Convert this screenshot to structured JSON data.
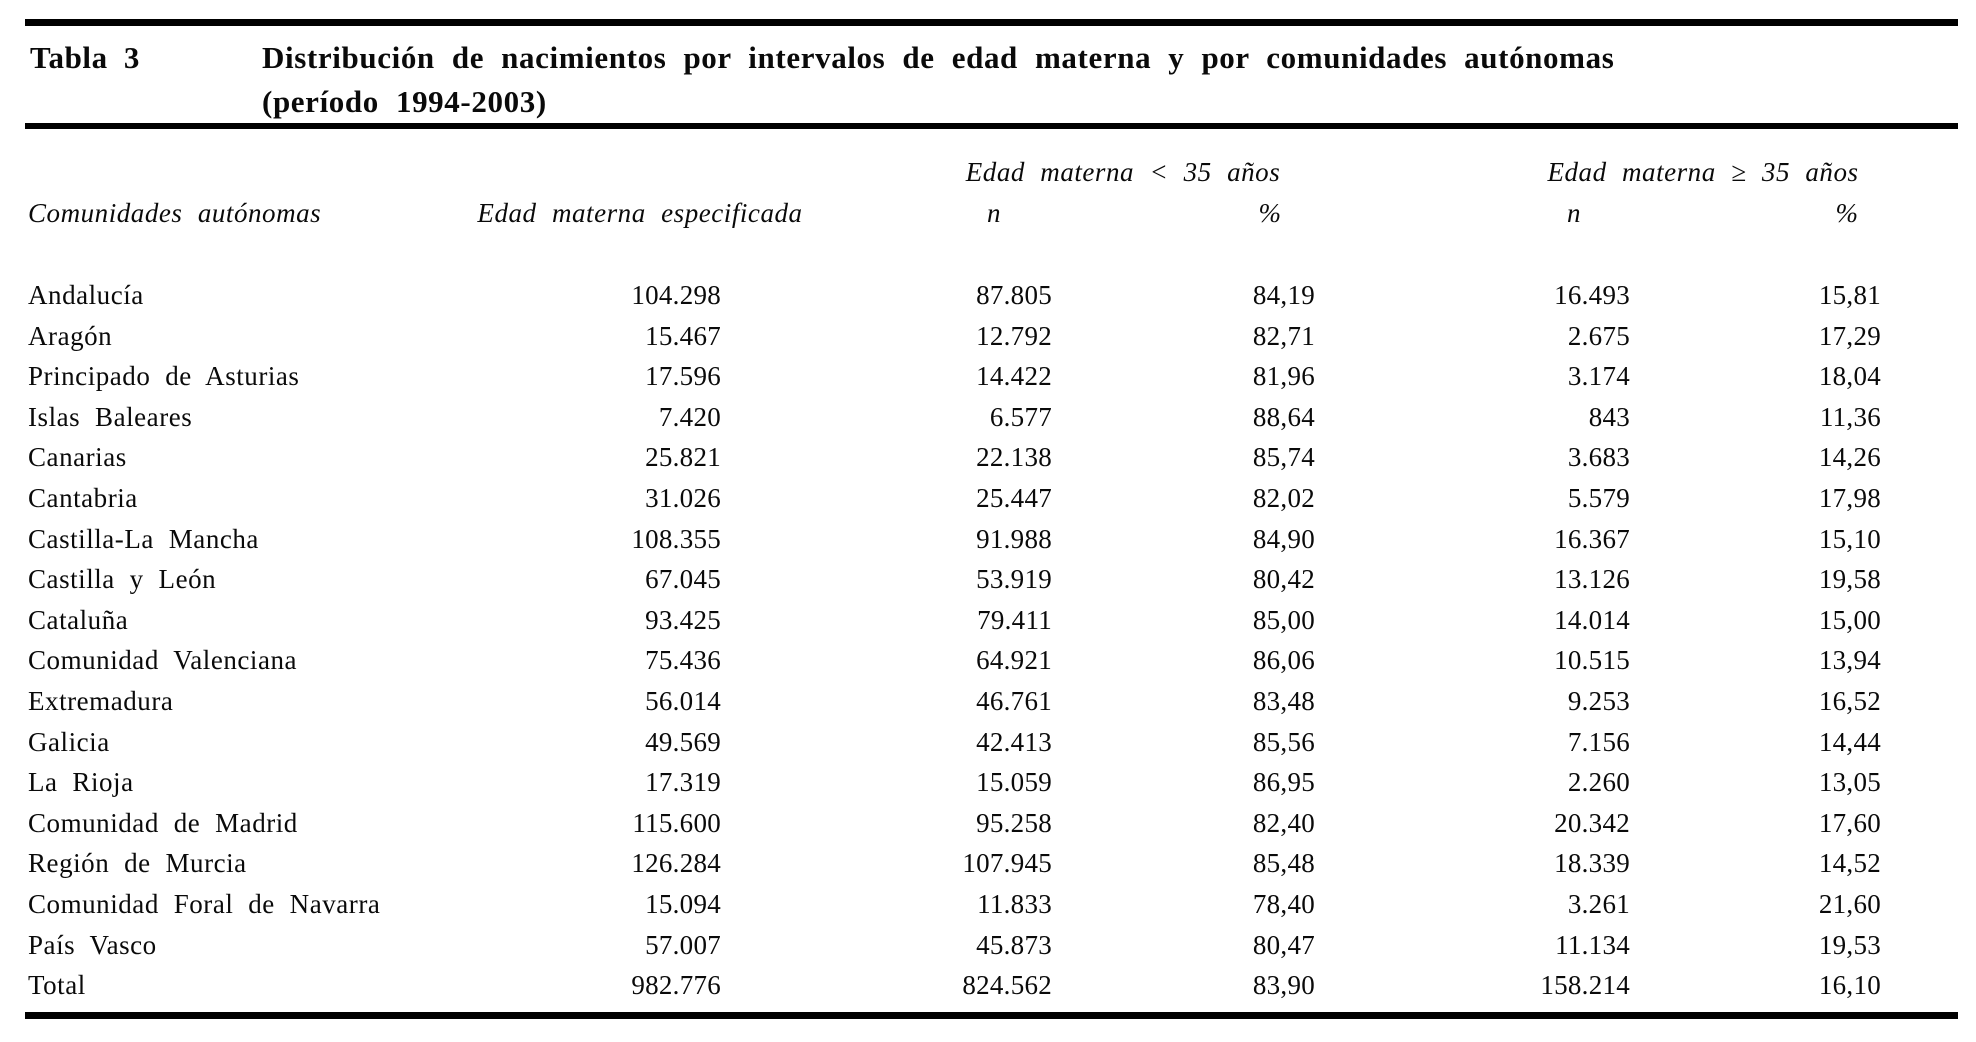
{
  "table": {
    "label": "Tabla 3",
    "title_line1": "Distribución de nacimientos por intervalos de edad materna y por comunidades autónomas",
    "title_line2": "(período 1994-2003)",
    "group_lt35": "Edad materna < 35 años",
    "group_ge35": "Edad materna ≥ 35 años",
    "col_headers": {
      "region": "Comunidades autónomas",
      "specified": "Edad materna especificada",
      "n_lt35": "n",
      "pct_lt35": "%",
      "n_ge35": "n",
      "pct_ge35": "%"
    },
    "rows": [
      {
        "region": "Andalucía",
        "specified": "104.298",
        "n_lt35": "87.805",
        "pct_lt35": "84,19",
        "n_ge35": "16.493",
        "pct_ge35": "15,81"
      },
      {
        "region": "Aragón",
        "specified": "15.467",
        "n_lt35": "12.792",
        "pct_lt35": "82,71",
        "n_ge35": "2.675",
        "pct_ge35": "17,29"
      },
      {
        "region": "Principado de Asturias",
        "specified": "17.596",
        "n_lt35": "14.422",
        "pct_lt35": "81,96",
        "n_ge35": "3.174",
        "pct_ge35": "18,04"
      },
      {
        "region": "Islas Baleares",
        "specified": "7.420",
        "n_lt35": "6.577",
        "pct_lt35": "88,64",
        "n_ge35": "843",
        "pct_ge35": "11,36"
      },
      {
        "region": "Canarias",
        "specified": "25.821",
        "n_lt35": "22.138",
        "pct_lt35": "85,74",
        "n_ge35": "3.683",
        "pct_ge35": "14,26"
      },
      {
        "region": "Cantabria",
        "specified": "31.026",
        "n_lt35": "25.447",
        "pct_lt35": "82,02",
        "n_ge35": "5.579",
        "pct_ge35": "17,98"
      },
      {
        "region": "Castilla-La Mancha",
        "specified": "108.355",
        "n_lt35": "91.988",
        "pct_lt35": "84,90",
        "n_ge35": "16.367",
        "pct_ge35": "15,10"
      },
      {
        "region": "Castilla y León",
        "specified": "67.045",
        "n_lt35": "53.919",
        "pct_lt35": "80,42",
        "n_ge35": "13.126",
        "pct_ge35": "19,58"
      },
      {
        "region": "Cataluña",
        "specified": "93.425",
        "n_lt35": "79.411",
        "pct_lt35": "85,00",
        "n_ge35": "14.014",
        "pct_ge35": "15,00"
      },
      {
        "region": "Comunidad Valenciana",
        "specified": "75.436",
        "n_lt35": "64.921",
        "pct_lt35": "86,06",
        "n_ge35": "10.515",
        "pct_ge35": "13,94"
      },
      {
        "region": "Extremadura",
        "specified": "56.014",
        "n_lt35": "46.761",
        "pct_lt35": "83,48",
        "n_ge35": "9.253",
        "pct_ge35": "16,52"
      },
      {
        "region": "Galicia",
        "specified": "49.569",
        "n_lt35": "42.413",
        "pct_lt35": "85,56",
        "n_ge35": "7.156",
        "pct_ge35": "14,44"
      },
      {
        "region": "La Rioja",
        "specified": "17.319",
        "n_lt35": "15.059",
        "pct_lt35": "86,95",
        "n_ge35": "2.260",
        "pct_ge35": "13,05"
      },
      {
        "region": "Comunidad de Madrid",
        "specified": "115.600",
        "n_lt35": "95.258",
        "pct_lt35": "82,40",
        "n_ge35": "20.342",
        "pct_ge35": "17,60"
      },
      {
        "region": "Región de Murcia",
        "specified": "126.284",
        "n_lt35": "107.945",
        "pct_lt35": "85,48",
        "n_ge35": "18.339",
        "pct_ge35": "14,52"
      },
      {
        "region": "Comunidad Foral de Navarra",
        "specified": "15.094",
        "n_lt35": "11.833",
        "pct_lt35": "78,40",
        "n_ge35": "3.261",
        "pct_ge35": "21,60"
      },
      {
        "region": "País Vasco",
        "specified": "57.007",
        "n_lt35": "45.873",
        "pct_lt35": "80,47",
        "n_ge35": "11.134",
        "pct_ge35": "19,53"
      },
      {
        "region": "Total",
        "specified": "982.776",
        "n_lt35": "824.562",
        "pct_lt35": "83,90",
        "n_ge35": "158.214",
        "pct_ge35": "16,10"
      }
    ]
  }
}
